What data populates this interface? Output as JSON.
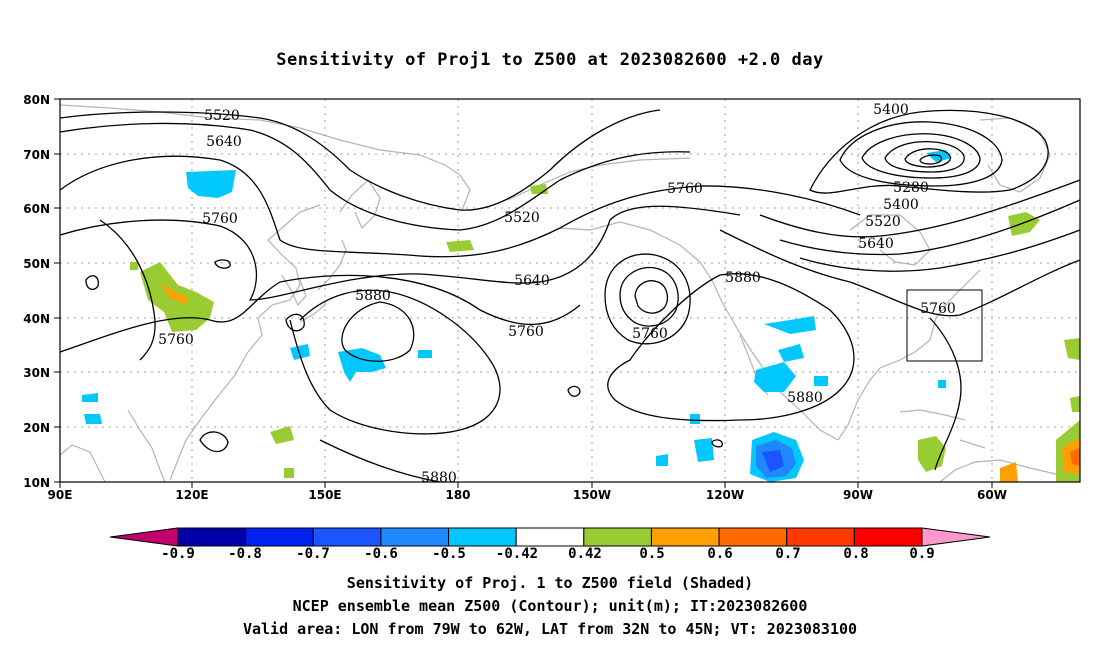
{
  "title": "Sensitivity of Proj1 to Z500 at 2023082600 +2.0 day",
  "axes": {
    "lat_labels": [
      "80N",
      "70N",
      "60N",
      "50N",
      "40N",
      "30N",
      "20N",
      "10N"
    ],
    "lon_labels": [
      "90E",
      "120E",
      "150E",
      "180",
      "150W",
      "120W",
      "90W",
      "60W"
    ]
  },
  "contour_labels": [
    {
      "text": "5520"
    },
    {
      "text": "5640"
    },
    {
      "text": "5760"
    },
    {
      "text": "5760"
    },
    {
      "text": "5880"
    },
    {
      "text": "5520"
    },
    {
      "text": "5640"
    },
    {
      "text": "5760"
    },
    {
      "text": "5760"
    },
    {
      "text": "5760"
    },
    {
      "text": "5880"
    },
    {
      "text": "5880"
    },
    {
      "text": "5880"
    },
    {
      "text": "5400"
    },
    {
      "text": "5280"
    },
    {
      "text": "5400"
    },
    {
      "text": "5520"
    },
    {
      "text": "5640"
    },
    {
      "text": "5760"
    }
  ],
  "colorbar": {
    "labels": [
      "-0.9",
      "-0.8",
      "-0.7",
      "-0.6",
      "-0.5",
      "-0.42",
      "0.42",
      "0.5",
      "0.6",
      "0.7",
      "0.8",
      "0.9"
    ],
    "colors": [
      "#0000aa",
      "#0022ee",
      "#1a55ff",
      "#1f88ff",
      "#00c8ff",
      "#ffffff",
      "#99cc33",
      "#ffa000",
      "#ff6a00",
      "#ff3a00",
      "#ff0000"
    ],
    "end_low": "#c0006e",
    "end_high": "#ff99cc"
  },
  "caption": {
    "line1": "Sensitivity of Proj. 1 to Z500 field (Shaded)",
    "line2": "NCEP ensemble mean Z500 (Contour); unit(m); IT:2023082600",
    "line3": "Valid area: LON from 79W to 62W, LAT from 32N to 45N; VT: 2023083100"
  },
  "map_colors": {
    "coast": "#b4b4b4",
    "grid": "#a0a0a0",
    "contour": "#000000"
  }
}
